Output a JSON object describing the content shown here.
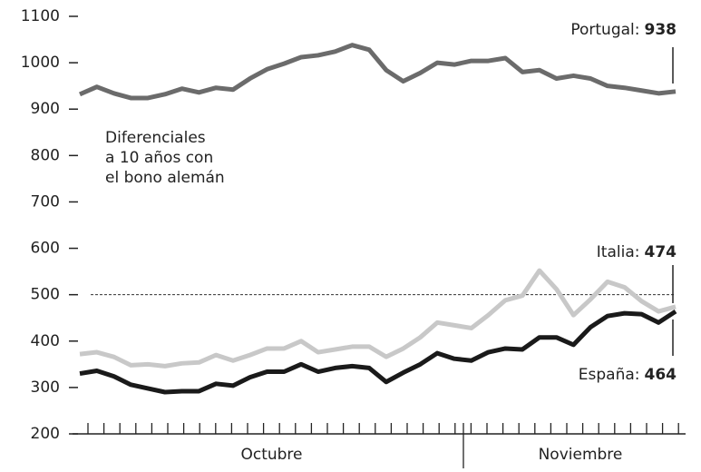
{
  "chart_data": {
    "type": "line",
    "annotation": [
      "Diferenciales",
      "a 10 años con",
      "el bono alemán"
    ],
    "period_labels": [
      "Octubre",
      "Noviembre"
    ],
    "ylim": [
      200,
      1100
    ],
    "yticks": [
      200,
      300,
      400,
      500,
      600,
      700,
      800,
      900,
      1000,
      1100
    ],
    "reference_line": 500,
    "series": [
      {
        "name": "Portugal:",
        "color": "#6b6b6b",
        "value_label": "938",
        "values": [
          932,
          948,
          934,
          924,
          924,
          932,
          944,
          936,
          946,
          942,
          966,
          986,
          998,
          1012,
          1016,
          1024,
          1038,
          1028,
          984,
          960,
          978,
          1000,
          996,
          1004,
          1004,
          1010,
          980,
          984,
          966,
          972,
          966,
          950,
          946,
          940,
          934,
          938
        ]
      },
      {
        "name": "Italia:",
        "color": "#c8c8c8",
        "value_label": "474",
        "values": [
          372,
          376,
          366,
          348,
          350,
          346,
          352,
          354,
          370,
          358,
          370,
          384,
          384,
          400,
          376,
          382,
          388,
          388,
          366,
          384,
          408,
          440,
          434,
          428,
          456,
          488,
          498,
          552,
          512,
          456,
          490,
          528,
          516,
          486,
          464,
          474
        ]
      },
      {
        "name": "España:",
        "color": "#1a1a1a",
        "value_label": "464",
        "values": [
          330,
          336,
          324,
          306,
          298,
          290,
          292,
          292,
          308,
          304,
          322,
          334,
          334,
          350,
          334,
          342,
          346,
          342,
          312,
          332,
          350,
          374,
          362,
          358,
          376,
          384,
          382,
          408,
          408,
          392,
          430,
          454,
          460,
          458,
          440,
          464
        ]
      }
    ]
  }
}
